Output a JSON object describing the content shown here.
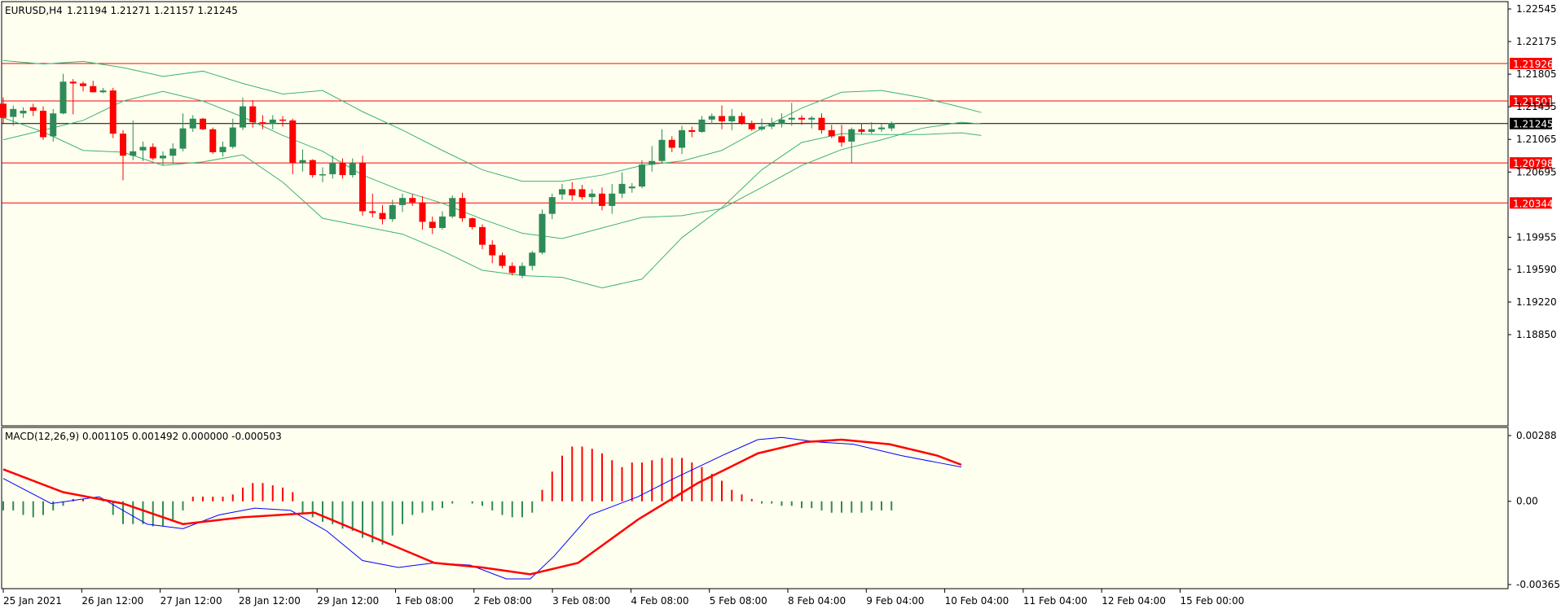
{
  "colors": {
    "background": "#FFFFF0",
    "bull": "#2E8B57",
    "bear": "#FF0000",
    "bands": "#3CB371",
    "macd_line": "#0000FF",
    "signal_line": "#FF0000",
    "level_line": "#FF0000",
    "current_price_line": "#000000"
  },
  "header": {
    "symbol": "EURUSD,H4",
    "ohlc": "1.21194 1.21271 1.21157 1.21245"
  },
  "macd_header": "MACD(12,26,9) 0.001105 0.001492 0.000000 -0.000503",
  "price_axis": {
    "min": 1.1885,
    "max": 1.22545,
    "ticks": [
      "1.22545",
      "1.22175",
      "1.21805",
      "1.21435",
      "1.21065",
      "1.20695",
      "1.19955",
      "1.19590",
      "1.19220",
      "1.18850"
    ]
  },
  "levels": [
    {
      "label": "1.21926",
      "value": 1.21926
    },
    {
      "label": "1.21501",
      "value": 1.21501
    },
    {
      "label": "1.20798",
      "value": 1.20798
    },
    {
      "label": "1.20344",
      "value": 1.20344
    }
  ],
  "current_price": {
    "label": "1.21245",
    "value": 1.21245
  },
  "macd_axis": {
    "min": -0.003651,
    "max": 0.00288,
    "ticks": [
      "0.00288",
      "0.00",
      "-0.003651"
    ]
  },
  "time_labels": [
    "25 Jan 2021",
    "26 Jan 12:00",
    "27 Jan 12:00",
    "28 Jan 12:00",
    "29 Jan 12:00",
    "1 Feb 08:00",
    "2 Feb 08:00",
    "3 Feb 08:00",
    "4 Feb 08:00",
    "5 Feb 08:00",
    "8 Feb 04:00",
    "9 Feb 04:00",
    "10 Feb 04:00",
    "11 Feb 04:00",
    "12 Feb 04:00",
    "15 Feb 00:00"
  ],
  "chart_data": {
    "type": "candlestick",
    "symbol": "EURUSD",
    "timeframe": "H4",
    "candles": [
      {
        "o": 1.2147,
        "h": 1.2154,
        "l": 1.2125,
        "c": 1.2131
      },
      {
        "o": 1.2132,
        "h": 1.2145,
        "l": 1.2122,
        "c": 1.2141
      },
      {
        "o": 1.2136,
        "h": 1.2143,
        "l": 1.2131,
        "c": 1.2139
      },
      {
        "o": 1.2143,
        "h": 1.2147,
        "l": 1.2133,
        "c": 1.2139
      },
      {
        "o": 1.2139,
        "h": 1.2144,
        "l": 1.2106,
        "c": 1.2109
      },
      {
        "o": 1.211,
        "h": 1.2141,
        "l": 1.2104,
        "c": 1.2136
      },
      {
        "o": 1.2136,
        "h": 1.2181,
        "l": 1.2135,
        "c": 1.2172
      },
      {
        "o": 1.2172,
        "h": 1.2175,
        "l": 1.2135,
        "c": 1.217
      },
      {
        "o": 1.217,
        "h": 1.2172,
        "l": 1.2161,
        "c": 1.2167
      },
      {
        "o": 1.2167,
        "h": 1.2173,
        "l": 1.216,
        "c": 1.216
      },
      {
        "o": 1.216,
        "h": 1.2165,
        "l": 1.2159,
        "c": 1.2162
      },
      {
        "o": 1.2162,
        "h": 1.2165,
        "l": 1.2108,
        "c": 1.2113
      },
      {
        "o": 1.2113,
        "h": 1.2117,
        "l": 1.206,
        "c": 1.2088
      },
      {
        "o": 1.2088,
        "h": 1.2128,
        "l": 1.2083,
        "c": 1.2093
      },
      {
        "o": 1.2094,
        "h": 1.2104,
        "l": 1.2082,
        "c": 1.2098
      },
      {
        "o": 1.2098,
        "h": 1.2102,
        "l": 1.2083,
        "c": 1.2085
      },
      {
        "o": 1.2085,
        "h": 1.2093,
        "l": 1.2077,
        "c": 1.2088
      },
      {
        "o": 1.2088,
        "h": 1.2102,
        "l": 1.2079,
        "c": 1.2096
      },
      {
        "o": 1.2096,
        "h": 1.2136,
        "l": 1.2093,
        "c": 1.2119
      },
      {
        "o": 1.2119,
        "h": 1.2134,
        "l": 1.2115,
        "c": 1.213
      },
      {
        "o": 1.213,
        "h": 1.2131,
        "l": 1.2117,
        "c": 1.2118
      },
      {
        "o": 1.2118,
        "h": 1.212,
        "l": 1.209,
        "c": 1.2092
      },
      {
        "o": 1.2092,
        "h": 1.2104,
        "l": 1.2087,
        "c": 1.2098
      },
      {
        "o": 1.2098,
        "h": 1.213,
        "l": 1.2096,
        "c": 1.212
      },
      {
        "o": 1.212,
        "h": 1.2154,
        "l": 1.2117,
        "c": 1.2144
      },
      {
        "o": 1.2144,
        "h": 1.2151,
        "l": 1.212,
        "c": 1.2126
      },
      {
        "o": 1.2126,
        "h": 1.2134,
        "l": 1.2118,
        "c": 1.2124
      },
      {
        "o": 1.2124,
        "h": 1.2134,
        "l": 1.2118,
        "c": 1.2129
      },
      {
        "o": 1.2129,
        "h": 1.2133,
        "l": 1.2121,
        "c": 1.2128
      },
      {
        "o": 1.2128,
        "h": 1.213,
        "l": 1.2067,
        "c": 1.208
      },
      {
        "o": 1.208,
        "h": 1.2095,
        "l": 1.207,
        "c": 1.2083
      },
      {
        "o": 1.2083,
        "h": 1.2084,
        "l": 1.2063,
        "c": 1.2066
      },
      {
        "o": 1.2066,
        "h": 1.2075,
        "l": 1.2058,
        "c": 1.2067
      },
      {
        "o": 1.2067,
        "h": 1.2088,
        "l": 1.2062,
        "c": 1.208
      },
      {
        "o": 1.208,
        "h": 1.2085,
        "l": 1.2062,
        "c": 1.2066
      },
      {
        "o": 1.2066,
        "h": 1.2085,
        "l": 1.2063,
        "c": 1.208
      },
      {
        "o": 1.208,
        "h": 1.2088,
        "l": 1.202,
        "c": 1.2025
      },
      {
        "o": 1.2025,
        "h": 1.2045,
        "l": 1.2018,
        "c": 1.2023
      },
      {
        "o": 1.2023,
        "h": 1.2032,
        "l": 1.201,
        "c": 1.2016
      },
      {
        "o": 1.2016,
        "h": 1.2038,
        "l": 1.2013,
        "c": 1.2032
      },
      {
        "o": 1.2032,
        "h": 1.2045,
        "l": 1.2024,
        "c": 1.204
      },
      {
        "o": 1.204,
        "h": 1.2044,
        "l": 1.2031,
        "c": 1.2035
      },
      {
        "o": 1.2035,
        "h": 1.2042,
        "l": 1.2004,
        "c": 1.2013
      },
      {
        "o": 1.2013,
        "h": 1.2019,
        "l": 1.1999,
        "c": 1.2006
      },
      {
        "o": 1.2006,
        "h": 1.2025,
        "l": 1.2004,
        "c": 1.2019
      },
      {
        "o": 1.2019,
        "h": 1.2043,
        "l": 1.2017,
        "c": 1.204
      },
      {
        "o": 1.204,
        "h": 1.2046,
        "l": 1.2013,
        "c": 1.2017
      },
      {
        "o": 1.2017,
        "h": 1.2018,
        "l": 1.2004,
        "c": 1.2007
      },
      {
        "o": 1.2007,
        "h": 1.201,
        "l": 1.1982,
        "c": 1.1987
      },
      {
        "o": 1.1987,
        "h": 1.1992,
        "l": 1.1966,
        "c": 1.1975
      },
      {
        "o": 1.1975,
        "h": 1.1978,
        "l": 1.196,
        "c": 1.1963
      },
      {
        "o": 1.1963,
        "h": 1.1967,
        "l": 1.1952,
        "c": 1.1955
      },
      {
        "o": 1.1952,
        "h": 1.1967,
        "l": 1.1949,
        "c": 1.1963
      },
      {
        "o": 1.1963,
        "h": 1.198,
        "l": 1.1958,
        "c": 1.1978
      },
      {
        "o": 1.1978,
        "h": 1.2027,
        "l": 1.1976,
        "c": 1.2022
      },
      {
        "o": 1.2022,
        "h": 1.2045,
        "l": 1.2016,
        "c": 1.2041
      },
      {
        "o": 1.2044,
        "h": 1.2056,
        "l": 1.2038,
        "c": 1.205
      },
      {
        "o": 1.205,
        "h": 1.2058,
        "l": 1.2037,
        "c": 1.2043
      },
      {
        "o": 1.205,
        "h": 1.2055,
        "l": 1.2038,
        "c": 1.2041
      },
      {
        "o": 1.2041,
        "h": 1.205,
        "l": 1.2033,
        "c": 1.2045
      },
      {
        "o": 1.2045,
        "h": 1.2052,
        "l": 1.2026,
        "c": 1.2031
      },
      {
        "o": 1.2031,
        "h": 1.2056,
        "l": 1.2022,
        "c": 1.2045
      },
      {
        "o": 1.2045,
        "h": 1.2069,
        "l": 1.204,
        "c": 1.2056
      },
      {
        "o": 1.2051,
        "h": 1.2057,
        "l": 1.2046,
        "c": 1.2053
      },
      {
        "o": 1.2053,
        "h": 1.2083,
        "l": 1.2051,
        "c": 1.2078
      },
      {
        "o": 1.2078,
        "h": 1.2099,
        "l": 1.207,
        "c": 1.2082
      },
      {
        "o": 1.2082,
        "h": 1.2118,
        "l": 1.2079,
        "c": 1.2106
      },
      {
        "o": 1.2106,
        "h": 1.211,
        "l": 1.2092,
        "c": 1.2097
      },
      {
        "o": 1.2097,
        "h": 1.2122,
        "l": 1.209,
        "c": 1.2117
      },
      {
        "o": 1.2117,
        "h": 1.2121,
        "l": 1.2109,
        "c": 1.2115
      },
      {
        "o": 1.2115,
        "h": 1.2133,
        "l": 1.2114,
        "c": 1.2129
      },
      {
        "o": 1.2129,
        "h": 1.2136,
        "l": 1.2124,
        "c": 1.2133
      },
      {
        "o": 1.2133,
        "h": 1.2145,
        "l": 1.2118,
        "c": 1.2127
      },
      {
        "o": 1.2127,
        "h": 1.2141,
        "l": 1.2117,
        "c": 1.2133
      },
      {
        "o": 1.2133,
        "h": 1.2137,
        "l": 1.2123,
        "c": 1.2125
      },
      {
        "o": 1.2125,
        "h": 1.2128,
        "l": 1.2116,
        "c": 1.2118
      },
      {
        "o": 1.2118,
        "h": 1.213,
        "l": 1.2116,
        "c": 1.2121
      },
      {
        "o": 1.2121,
        "h": 1.2131,
        "l": 1.2118,
        "c": 1.2124
      },
      {
        "o": 1.2124,
        "h": 1.2136,
        "l": 1.212,
        "c": 1.2129
      },
      {
        "o": 1.2129,
        "h": 1.2148,
        "l": 1.2122,
        "c": 1.2131
      },
      {
        "o": 1.2131,
        "h": 1.2134,
        "l": 1.2123,
        "c": 1.2129
      },
      {
        "o": 1.2129,
        "h": 1.2133,
        "l": 1.2119,
        "c": 1.2131
      },
      {
        "o": 1.2131,
        "h": 1.2136,
        "l": 1.2113,
        "c": 1.2117
      },
      {
        "o": 1.2117,
        "h": 1.2123,
        "l": 1.2108,
        "c": 1.211
      },
      {
        "o": 1.211,
        "h": 1.2123,
        "l": 1.2098,
        "c": 1.2103
      },
      {
        "o": 1.2104,
        "h": 1.212,
        "l": 1.208,
        "c": 1.2118
      },
      {
        "o": 1.2118,
        "h": 1.2125,
        "l": 1.2112,
        "c": 1.2115
      },
      {
        "o": 1.2115,
        "h": 1.2126,
        "l": 1.2113,
        "c": 1.2118
      },
      {
        "o": 1.2118,
        "h": 1.2124,
        "l": 1.2115,
        "c": 1.212
      },
      {
        "o": 1.2119,
        "h": 1.2127,
        "l": 1.2116,
        "c": 1.2125
      }
    ],
    "bands": {
      "upper": [
        [
          0,
          1.2196
        ],
        [
          8,
          1.2192
        ],
        [
          16,
          1.2195
        ],
        [
          24,
          1.2188
        ],
        [
          32,
          1.2178
        ],
        [
          40,
          1.2184
        ],
        [
          48,
          1.217
        ],
        [
          56,
          1.2158
        ],
        [
          64,
          1.2162
        ],
        [
          72,
          1.2138
        ],
        [
          80,
          1.2117
        ],
        [
          88,
          1.2094
        ],
        [
          96,
          1.2072
        ],
        [
          104,
          1.2059
        ],
        [
          112,
          1.2059
        ],
        [
          120,
          1.2066
        ],
        [
          128,
          1.2077
        ],
        [
          136,
          1.2082
        ],
        [
          144,
          1.2094
        ],
        [
          152,
          1.2119
        ],
        [
          160,
          1.2142
        ],
        [
          168,
          1.216
        ],
        [
          176,
          1.2162
        ],
        [
          184,
          1.2154
        ],
        [
          192,
          1.2143
        ],
        [
          196,
          1.2137
        ]
      ],
      "middle": [
        [
          0,
          1.2106
        ],
        [
          8,
          1.2117
        ],
        [
          16,
          1.2128
        ],
        [
          24,
          1.215
        ],
        [
          32,
          1.2161
        ],
        [
          40,
          1.215
        ],
        [
          48,
          1.2132
        ],
        [
          56,
          1.2111
        ],
        [
          64,
          1.2093
        ],
        [
          72,
          1.2066
        ],
        [
          80,
          1.2048
        ],
        [
          88,
          1.2034
        ],
        [
          96,
          1.2016
        ],
        [
          104,
          1.2
        ],
        [
          112,
          1.1994
        ],
        [
          120,
          1.2006
        ],
        [
          128,
          1.2018
        ],
        [
          136,
          1.202
        ],
        [
          144,
          1.2028
        ],
        [
          152,
          1.2052
        ],
        [
          160,
          1.2077
        ],
        [
          168,
          1.2095
        ],
        [
          176,
          1.2106
        ],
        [
          184,
          1.2119
        ],
        [
          192,
          1.2126
        ],
        [
          196,
          1.2124
        ]
      ],
      "lower": [
        [
          0,
          1.2131
        ],
        [
          8,
          1.2115
        ],
        [
          16,
          1.2094
        ],
        [
          24,
          1.2092
        ],
        [
          32,
          1.2077
        ],
        [
          40,
          1.2081
        ],
        [
          48,
          1.2089
        ],
        [
          56,
          1.2058
        ],
        [
          64,
          1.2017
        ],
        [
          72,
          1.2008
        ],
        [
          80,
          1.1999
        ],
        [
          88,
          1.198
        ],
        [
          96,
          1.1958
        ],
        [
          104,
          1.1952
        ],
        [
          112,
          1.195
        ],
        [
          120,
          1.1938
        ],
        [
          128,
          1.1948
        ],
        [
          136,
          1.1995
        ],
        [
          144,
          1.2029
        ],
        [
          152,
          1.2072
        ],
        [
          160,
          1.2103
        ],
        [
          168,
          1.2113
        ],
        [
          176,
          1.2112
        ],
        [
          184,
          1.2112
        ],
        [
          192,
          1.2114
        ],
        [
          196,
          1.2111
        ]
      ]
    },
    "macd": {
      "histogram": [
        -0.0004,
        -0.0004,
        -0.0006,
        -0.0007,
        -0.0006,
        -0.0004,
        -0.0002,
        0.0001,
        0.0001,
        0.0,
        0.0001,
        -0.0006,
        -0.001,
        -0.001,
        -0.001,
        -0.0011,
        -0.0011,
        -0.0008,
        -0.0004,
        0.0002,
        0.0002,
        0.0002,
        0.0002,
        0.0003,
        0.0006,
        0.0008,
        0.0008,
        0.0007,
        0.0006,
        0.0004,
        -0.0005,
        -0.0007,
        -0.0009,
        -0.001,
        -0.0012,
        -0.0013,
        -0.0016,
        -0.0018,
        -0.0019,
        -0.0015,
        -0.001,
        -0.0006,
        -0.0005,
        -0.0004,
        -0.0003,
        -0.0001,
        0.0,
        -0.0001,
        -0.0002,
        -0.0004,
        -0.0006,
        -0.0007,
        -0.0007,
        -0.0005,
        0.0005,
        0.0013,
        0.002,
        0.0024,
        0.0024,
        0.0023,
        0.0021,
        0.0018,
        0.0015,
        0.0017,
        0.0017,
        0.0018,
        0.0019,
        0.0019,
        0.0019,
        0.0017,
        0.0015,
        0.0012,
        0.0009,
        0.0005,
        0.0003,
        0.0001,
        -0.0001,
        -0.0001,
        -0.0002,
        -0.0002,
        -0.0003,
        -0.0003,
        -0.0004,
        -0.0005,
        -0.0005,
        -0.0005,
        -0.0005,
        -0.0004,
        -0.0004,
        -0.0004
      ],
      "main": [
        [
          0,
          0.001
        ],
        [
          8,
          -0.0001
        ],
        [
          16,
          0.0002
        ],
        [
          24,
          -0.001
        ],
        [
          30,
          -0.0012
        ],
        [
          36,
          -0.0006
        ],
        [
          42,
          -0.0003
        ],
        [
          48,
          -0.0004
        ],
        [
          54,
          -0.0013
        ],
        [
          60,
          -0.0026
        ],
        [
          66,
          -0.0029
        ],
        [
          72,
          -0.0027
        ],
        [
          78,
          -0.0028
        ],
        [
          84,
          -0.0034
        ],
        [
          88,
          -0.0034
        ],
        [
          92,
          -0.0024
        ],
        [
          98,
          -0.0006
        ],
        [
          106,
          0.0002
        ],
        [
          112,
          0.001
        ],
        [
          120,
          0.002
        ],
        [
          126,
          0.0027
        ],
        [
          130,
          0.0028
        ],
        [
          136,
          0.0026
        ],
        [
          142,
          0.0025
        ],
        [
          150,
          0.002
        ],
        [
          156,
          0.0017
        ],
        [
          160,
          0.0015
        ]
      ],
      "signal": [
        [
          0,
          0.0014
        ],
        [
          10,
          0.0004
        ],
        [
          20,
          -0.0001
        ],
        [
          30,
          -0.001
        ],
        [
          40,
          -0.0007
        ],
        [
          52,
          -0.0005
        ],
        [
          62,
          -0.0016
        ],
        [
          72,
          -0.0027
        ],
        [
          80,
          -0.0029
        ],
        [
          88,
          -0.0032
        ],
        [
          96,
          -0.0027
        ],
        [
          106,
          -0.0008
        ],
        [
          116,
          0.0008
        ],
        [
          126,
          0.0021
        ],
        [
          134,
          0.0026
        ],
        [
          140,
          0.0027
        ],
        [
          148,
          0.0025
        ],
        [
          156,
          0.002
        ],
        [
          160,
          0.0016
        ]
      ]
    }
  }
}
